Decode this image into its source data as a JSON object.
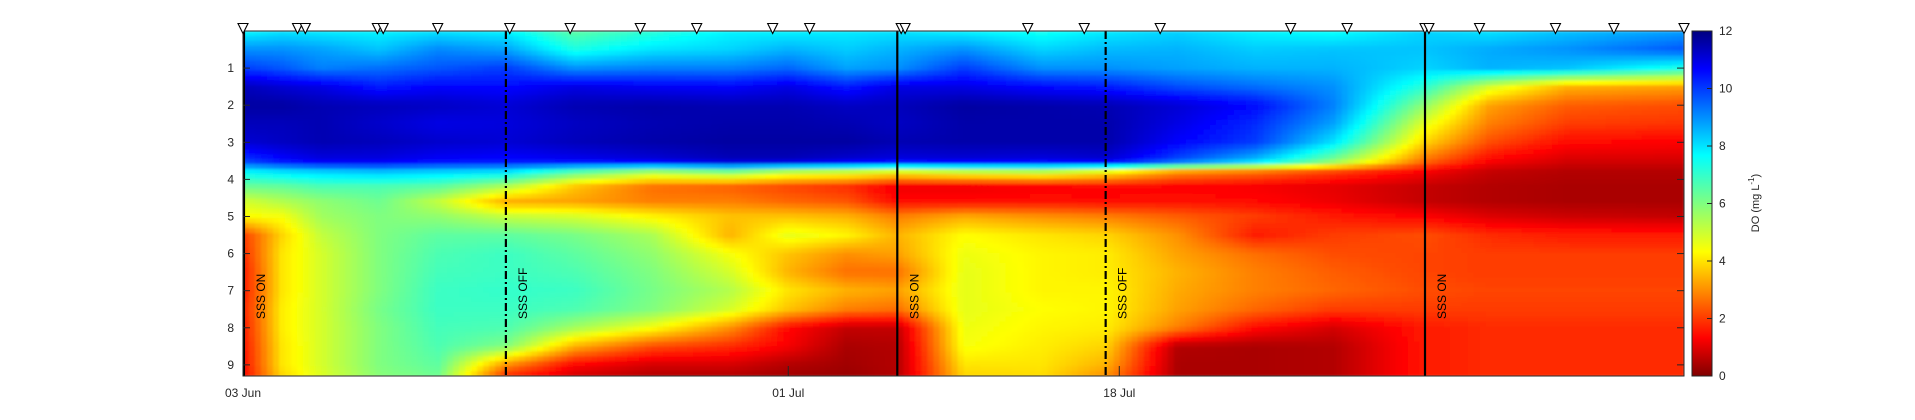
{
  "chart_data": {
    "type": "heatmap",
    "title": "",
    "xlabel": "",
    "ylabel": "",
    "xlim": [
      0,
      74
    ],
    "ylim": [
      0,
      9.3
    ],
    "y_reversed": true,
    "x_ticks": [
      {
        "day": 0,
        "label": "03 Jun"
      },
      {
        "day": 28,
        "label": "01 Jul"
      },
      {
        "day": 45,
        "label": "18 Jul"
      }
    ],
    "y_ticks": [
      {
        "depth": 1,
        "label": "1"
      },
      {
        "depth": 2,
        "label": "2"
      },
      {
        "depth": 3,
        "label": "3"
      },
      {
        "depth": 4,
        "label": "4"
      },
      {
        "depth": 5,
        "label": "5"
      },
      {
        "depth": 6,
        "label": "6"
      },
      {
        "depth": 7,
        "label": "7"
      },
      {
        "depth": 8,
        "label": "8"
      },
      {
        "depth": 9,
        "label": "9"
      }
    ],
    "colorbar": {
      "label_main": "DO (mg L",
      "label_sup": "-1",
      "label_end": ")",
      "min": 0,
      "max": 12,
      "ticks": [
        "0",
        "2",
        "4",
        "6",
        "8",
        "10",
        "12"
      ],
      "colormap": "jet"
    },
    "sampling_days": [
      0,
      2.8,
      3.2,
      6.9,
      7.2,
      10.0,
      13.7,
      16.8,
      20.4,
      23.3,
      27.2,
      29.1,
      33.8,
      34.0,
      40.3,
      43.2,
      47.1,
      53.8,
      56.7,
      60.7,
      60.9,
      63.5,
      67.4,
      70.4,
      74.0
    ],
    "events": [
      {
        "day": 0.05,
        "label": "SSS ON",
        "style": "solid"
      },
      {
        "day": 13.5,
        "label": "SSS OFF",
        "style": "dashdot"
      },
      {
        "day": 33.6,
        "label": "SSS ON",
        "style": "solid"
      },
      {
        "day": 44.3,
        "label": "SSS OFF",
        "style": "dashdot"
      },
      {
        "day": 60.7,
        "label": "SSS ON",
        "style": "solid"
      }
    ],
    "depth_grid": [
      0,
      0.5,
      1,
      1.5,
      2,
      2.5,
      3,
      3.5,
      3.8,
      4.2,
      4.6,
      5,
      5.5,
      6,
      6.5,
      7,
      7.5,
      8,
      8.5,
      9,
      9.3
    ],
    "day_grid": [
      0,
      2,
      4,
      7,
      10,
      13.5,
      17,
      21,
      25,
      28,
      31,
      33.6,
      37,
      41,
      44.3,
      48,
      52,
      56,
      60.7,
      64,
      68,
      74
    ],
    "values": [
      [
        7.5,
        7.8,
        7.7,
        7.6,
        7.8,
        7.6,
        6.4,
        7.0,
        7.6,
        7.6,
        7.7,
        7.8,
        7.6,
        7.3,
        7.7,
        8.0,
        7.6,
        7.4,
        8.0,
        7.8,
        8.2,
        8.6
      ],
      [
        8.8,
        8.8,
        8.6,
        8.2,
        8.9,
        8.6,
        7.2,
        7.8,
        8.0,
        8.4,
        8.1,
        8.4,
        8.8,
        8.0,
        8.3,
        8.4,
        8.1,
        8.2,
        8.2,
        8.5,
        8.8,
        9.5
      ],
      [
        9.8,
        9.5,
        9.0,
        9.2,
        9.5,
        9.8,
        8.8,
        9.0,
        9.0,
        9.3,
        8.6,
        8.8,
        9.8,
        8.8,
        8.8,
        8.6,
        8.4,
        8.4,
        8.0,
        8.4,
        8.2,
        7.2
      ],
      [
        11.3,
        11.0,
        10.8,
        10.2,
        10.5,
        10.4,
        10.8,
        10.6,
        10.5,
        10.8,
        10.2,
        10.8,
        10.8,
        10.4,
        10.2,
        9.6,
        9.2,
        8.8,
        7.0,
        5.0,
        3.6,
        3.4
      ],
      [
        11.6,
        11.6,
        11.4,
        11.3,
        11.2,
        11.0,
        11.4,
        11.5,
        11.4,
        11.4,
        11.2,
        11.3,
        11.6,
        11.5,
        11.4,
        11.0,
        10.4,
        9.0,
        5.8,
        3.4,
        2.6,
        2.4
      ],
      [
        11.3,
        11.3,
        11.4,
        11.1,
        10.8,
        10.9,
        11.2,
        11.4,
        11.5,
        11.5,
        11.4,
        11.2,
        11.5,
        11.5,
        11.5,
        10.8,
        10.0,
        8.6,
        4.8,
        3.0,
        2.2,
        2.1
      ],
      [
        11.0,
        11.2,
        11.4,
        11.3,
        11.1,
        11.0,
        11.3,
        11.5,
        11.6,
        11.6,
        11.6,
        11.4,
        11.5,
        11.5,
        11.5,
        10.5,
        9.8,
        7.8,
        4.0,
        2.4,
        1.6,
        1.5
      ],
      [
        9.8,
        10.4,
        10.8,
        10.8,
        10.5,
        10.4,
        10.6,
        10.9,
        11.3,
        11.3,
        11.0,
        10.8,
        10.9,
        10.8,
        11.0,
        9.6,
        8.2,
        6.0,
        2.8,
        1.5,
        1.0,
        1.0
      ],
      [
        7.5,
        7.8,
        8.0,
        8.2,
        8.0,
        7.8,
        6.5,
        5.5,
        6.0,
        5.2,
        5.0,
        4.6,
        5.0,
        5.2,
        4.5,
        3.2,
        2.8,
        2.2,
        1.4,
        0.8,
        0.6,
        0.6
      ],
      [
        6.2,
        6.3,
        6.6,
        6.6,
        6.4,
        5.4,
        3.8,
        2.8,
        2.6,
        2.3,
        2.0,
        1.3,
        1.3,
        1.4,
        1.5,
        1.5,
        1.4,
        1.2,
        0.8,
        0.6,
        0.5,
        0.5
      ],
      [
        5.0,
        5.4,
        5.8,
        6.2,
        5.2,
        3.5,
        3.4,
        3.0,
        3.0,
        2.7,
        2.5,
        1.6,
        1.6,
        1.7,
        1.6,
        1.7,
        1.6,
        1.3,
        0.8,
        0.6,
        0.5,
        0.5
      ],
      [
        4.5,
        4.6,
        5.6,
        6.0,
        5.8,
        5.2,
        5.0,
        4.4,
        3.8,
        3.8,
        3.6,
        3.0,
        3.5,
        3.2,
        3.0,
        2.6,
        2.2,
        1.8,
        1.5,
        1.1,
        0.9,
        0.8
      ],
      [
        2.2,
        4.0,
        5.2,
        6.0,
        6.4,
        6.4,
        6.1,
        5.5,
        3.6,
        4.8,
        4.4,
        3.6,
        4.5,
        4.2,
        4.0,
        3.2,
        1.8,
        2.2,
        2.4,
        2.0,
        1.8,
        1.8
      ],
      [
        2.0,
        4.2,
        5.0,
        6.0,
        6.6,
        6.8,
        6.4,
        5.8,
        4.6,
        3.8,
        3.2,
        3.4,
        4.7,
        4.4,
        4.3,
        3.4,
        2.8,
        2.4,
        2.3,
        2.2,
        2.2,
        2.2
      ],
      [
        1.8,
        4.2,
        5.0,
        6.0,
        6.7,
        6.8,
        6.6,
        6.0,
        5.0,
        3.6,
        2.8,
        2.8,
        4.8,
        4.4,
        4.3,
        3.6,
        3.0,
        2.6,
        2.3,
        2.2,
        2.2,
        2.2
      ],
      [
        1.8,
        4.2,
        5.0,
        6.0,
        6.8,
        6.9,
        6.8,
        6.1,
        5.4,
        4.2,
        3.6,
        3.4,
        4.8,
        4.4,
        4.4,
        3.5,
        3.0,
        2.7,
        2.4,
        2.3,
        2.3,
        2.3
      ],
      [
        1.9,
        4.3,
        5.0,
        6.1,
        6.8,
        6.8,
        6.6,
        6.0,
        5.0,
        3.8,
        3.0,
        2.8,
        4.8,
        4.5,
        4.4,
        3.4,
        2.7,
        2.2,
        2.2,
        2.2,
        2.2,
        2.2
      ],
      [
        1.8,
        4.3,
        5.0,
        6.0,
        6.7,
        6.6,
        5.6,
        4.6,
        3.2,
        1.6,
        0.8,
        0.8,
        4.7,
        4.4,
        4.3,
        3.0,
        1.6,
        1.0,
        1.8,
        2.0,
        2.0,
        2.0
      ],
      [
        1.7,
        4.2,
        5.0,
        6.0,
        6.6,
        6.0,
        3.6,
        2.4,
        2.0,
        1.4,
        0.5,
        0.6,
        4.6,
        4.3,
        4.0,
        0.6,
        0.5,
        0.6,
        1.8,
        2.0,
        2.0,
        2.0
      ],
      [
        1.6,
        4.2,
        5.0,
        6.0,
        6.4,
        3.2,
        1.5,
        1.0,
        1.0,
        0.6,
        0.4,
        0.6,
        4.2,
        4.2,
        3.6,
        0.5,
        0.5,
        0.6,
        1.8,
        2.0,
        2.0,
        2.0
      ],
      [
        1.5,
        4.0,
        4.9,
        5.9,
        6.2,
        2.0,
        1.0,
        0.6,
        0.6,
        0.4,
        0.3,
        0.6,
        4.0,
        4.1,
        3.2,
        0.5,
        0.5,
        0.6,
        1.8,
        2.0,
        2.0,
        2.0
      ]
    ]
  }
}
